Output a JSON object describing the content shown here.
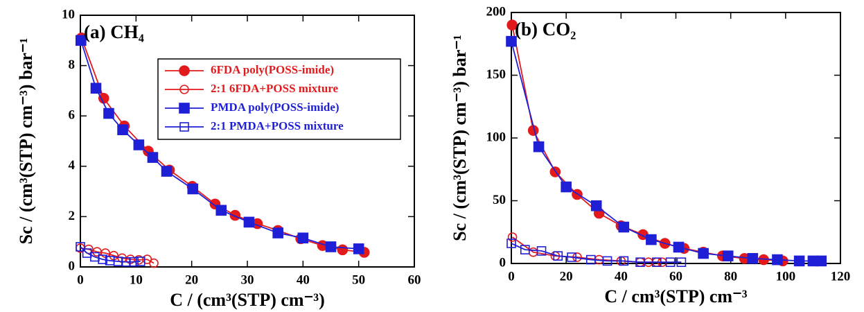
{
  "chart_data": [
    {
      "type": "line",
      "panel_label": "(a) CH₄",
      "x_label": "C / (cm³(STP) cm⁻³)",
      "y_label": "Sc / (cm³(STP) cm⁻³) bar⁻¹",
      "xlim": [
        0,
        60
      ],
      "xticks": [
        0,
        10,
        20,
        30,
        40,
        50,
        60
      ],
      "ylim": [
        0,
        10
      ],
      "yticks": [
        0,
        2,
        4,
        6,
        8,
        10
      ],
      "grid": false,
      "legend": "upper right",
      "series": [
        {
          "name": "6FDA  poly(POSS-imide)",
          "color": "#e31a1c",
          "marker": "circle",
          "filled": true,
          "x": [
            0.2,
            4.2,
            7.9,
            12.2,
            16.0,
            20.1,
            24.2,
            27.8,
            31.8,
            35.5,
            39.6,
            43.5,
            47.1,
            51.0
          ],
          "values": [
            9.1,
            6.7,
            5.6,
            4.6,
            3.85,
            3.2,
            2.5,
            2.05,
            1.72,
            1.45,
            1.12,
            0.85,
            0.68,
            0.58
          ]
        },
        {
          "name": "2:1 6FDA+POSS mixture",
          "color": "#e31a1c",
          "marker": "circle",
          "filled": false,
          "x": [
            0,
            1.5,
            3,
            4.5,
            6,
            7.5,
            9,
            10.5,
            12,
            13.2
          ],
          "values": [
            0.75,
            0.7,
            0.6,
            0.55,
            0.45,
            0.35,
            0.3,
            0.28,
            0.3,
            0.15
          ]
        },
        {
          "name": "PMDA  poly(POSS-imide)",
          "color": "#1f1fd6",
          "marker": "square",
          "filled": true,
          "x": [
            0.1,
            2.8,
            5.1,
            7.6,
            10.5,
            13.0,
            15.5,
            20.2,
            25.3,
            30.3,
            35.5,
            40.0,
            45.0,
            50.0
          ],
          "values": [
            9.0,
            7.1,
            6.1,
            5.45,
            4.85,
            4.35,
            3.8,
            3.1,
            2.25,
            1.78,
            1.35,
            1.15,
            0.8,
            0.72
          ]
        },
        {
          "name": "2:1 PMDA+POSS mixture",
          "color": "#1f1fd6",
          "marker": "square",
          "filled": false,
          "x": [
            0,
            1.2,
            2.6,
            4,
            5.3,
            6.8,
            8.2,
            9.6,
            10.8
          ],
          "values": [
            0.8,
            0.55,
            0.4,
            0.3,
            0.25,
            0.22,
            0.2,
            0.2,
            0.22
          ]
        }
      ]
    },
    {
      "type": "line",
      "panel_label": "(b) CO₂",
      "x_label": "C / cm³(STP) cm⁻³",
      "y_label": "Sc / (cm³(STP) cm⁻³) bar⁻¹",
      "xlim": [
        0,
        120
      ],
      "xticks": [
        0,
        20,
        40,
        60,
        80,
        100,
        120
      ],
      "ylim": [
        0,
        200
      ],
      "yticks": [
        0,
        50,
        100,
        150,
        200
      ],
      "grid": false,
      "series": [
        {
          "color": "#e31a1c",
          "marker": "circle",
          "filled": true,
          "x": [
            0.3,
            8,
            16,
            24,
            32,
            40,
            48,
            56,
            63,
            70,
            77,
            85,
            92,
            99
          ],
          "values": [
            190,
            106,
            73,
            55,
            40,
            30,
            23,
            16,
            12,
            9,
            6,
            4,
            3,
            2
          ]
        },
        {
          "color": "#e31a1c",
          "marker": "circle",
          "filled": false,
          "x": [
            0.4,
            8,
            16,
            24,
            32,
            40,
            47,
            50,
            53,
            55
          ],
          "values": [
            21,
            9,
            6,
            5,
            3,
            2,
            1,
            1,
            1,
            1
          ]
        },
        {
          "color": "#1f1fd6",
          "marker": "square",
          "filled": true,
          "x": [
            0,
            10,
            20,
            31,
            41,
            51,
            61,
            70,
            79,
            88,
            97,
            105,
            110,
            113
          ],
          "values": [
            177,
            93,
            61,
            46,
            29,
            19,
            13,
            8,
            6,
            4,
            3,
            2,
            2,
            2
          ]
        },
        {
          "color": "#1f1fd6",
          "marker": "square",
          "filled": false,
          "x": [
            0,
            5,
            11,
            17,
            22,
            29,
            35,
            41,
            47,
            53,
            58,
            62
          ],
          "values": [
            16,
            11,
            10,
            6,
            5,
            3,
            2,
            2,
            1,
            1,
            1,
            1
          ]
        }
      ]
    }
  ]
}
